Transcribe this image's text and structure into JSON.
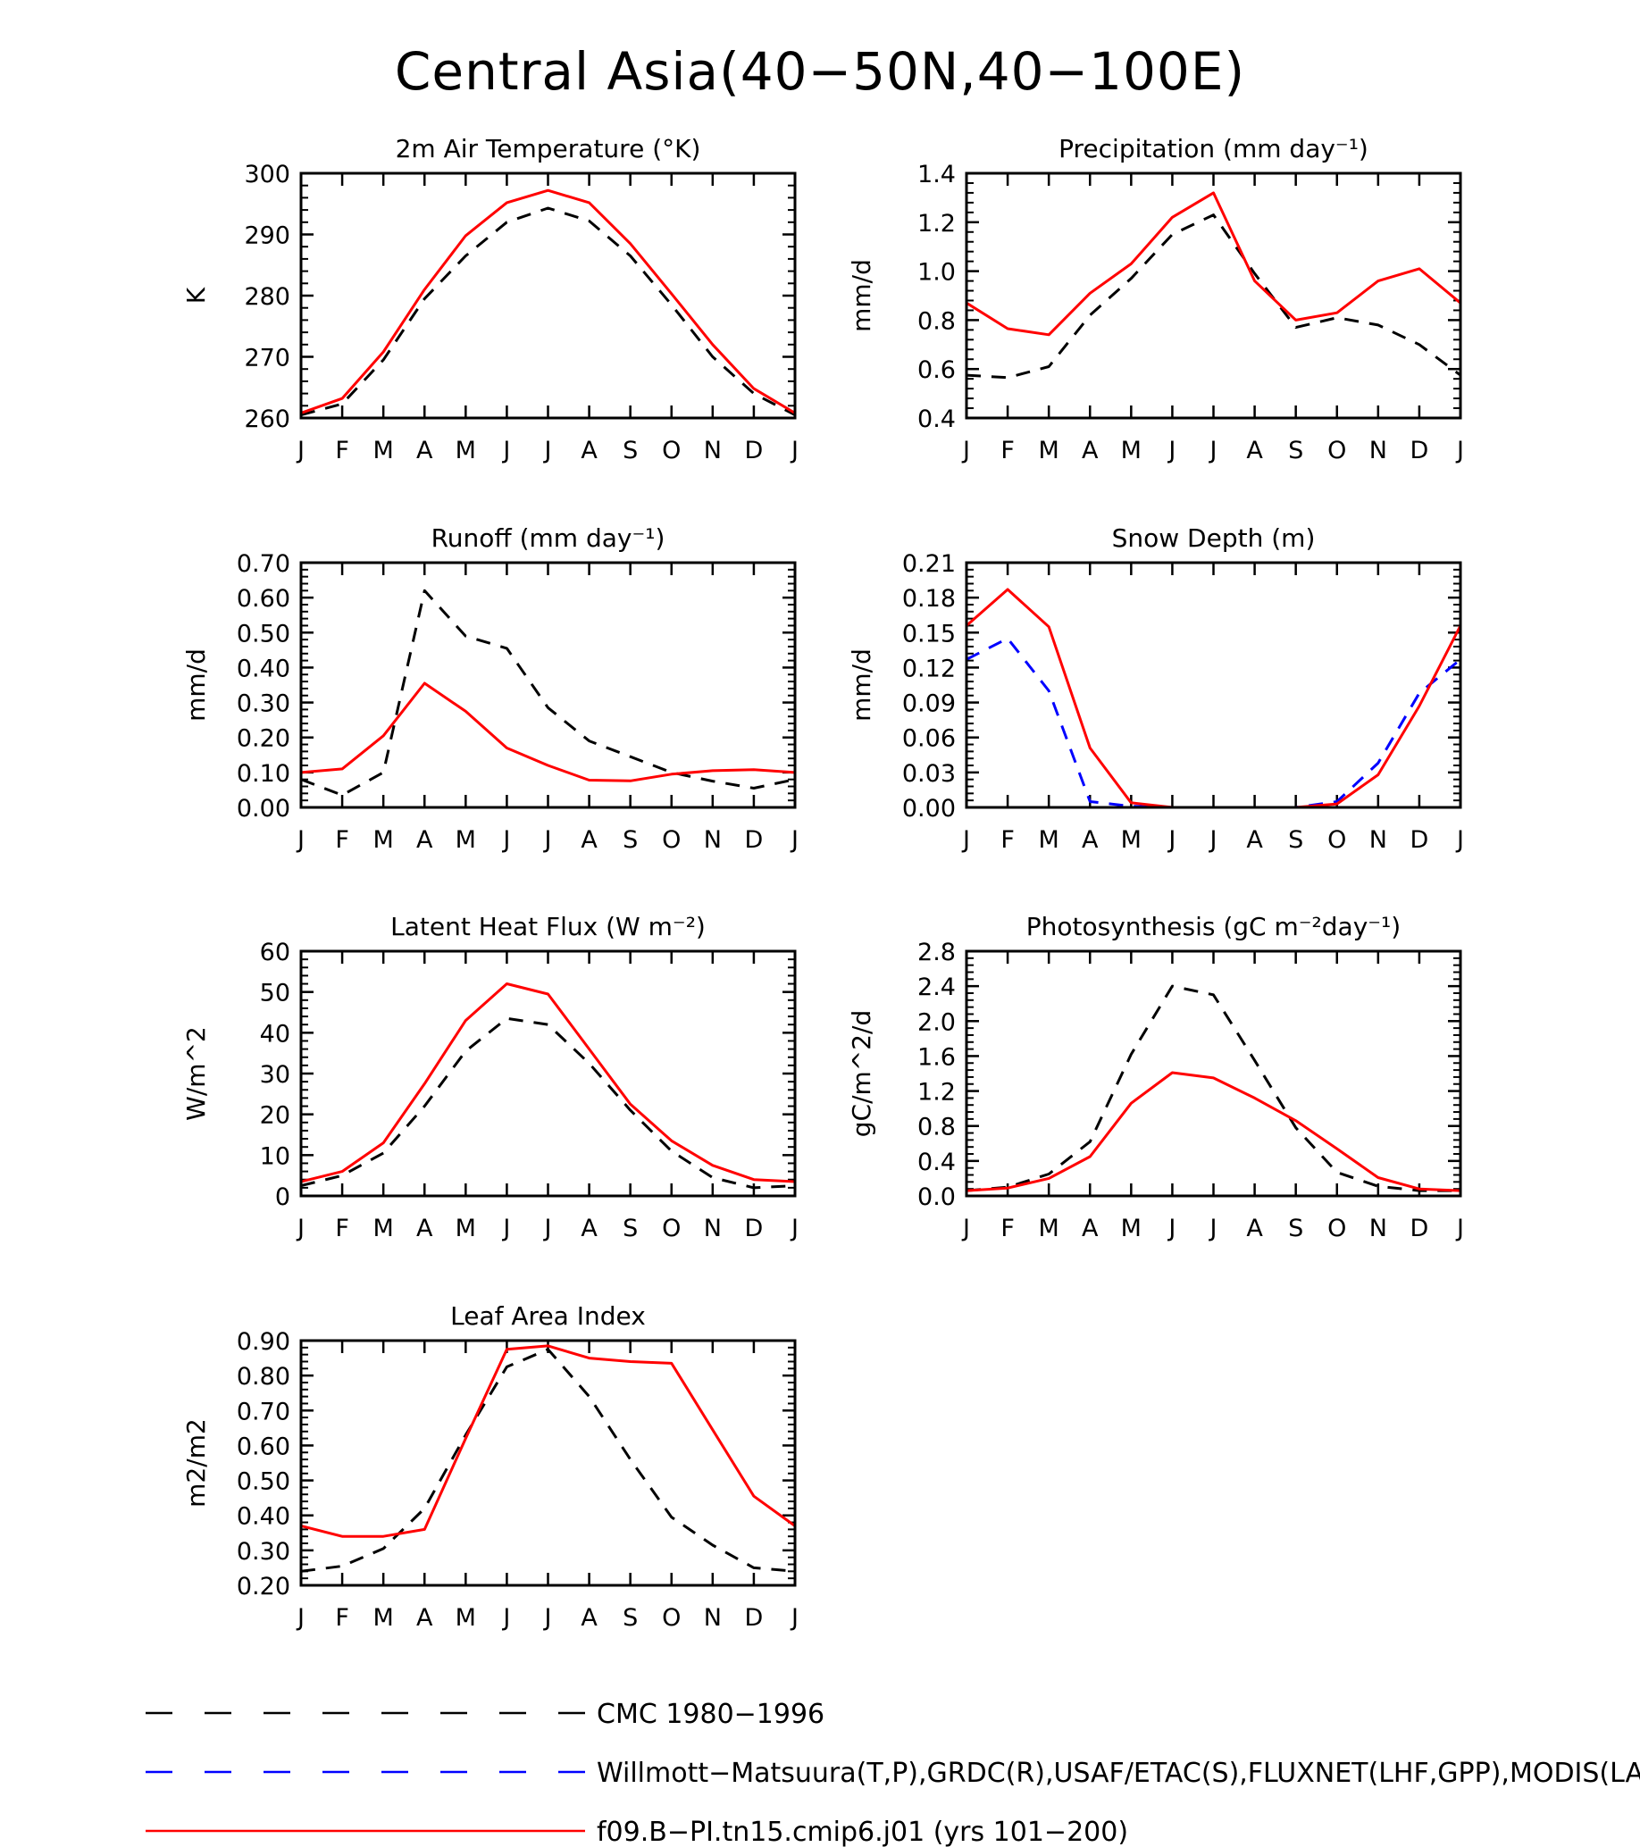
{
  "figure": {
    "title": "Central Asia(40−50N,40−100E)"
  },
  "chart_data": [
    {
      "type": "line",
      "title": "2m Air Temperature (°K)",
      "xlabel": "",
      "ylabel": "K",
      "x": [
        "J",
        "F",
        "M",
        "A",
        "M",
        "J",
        "J",
        "A",
        "S",
        "O",
        "N",
        "D",
        "J"
      ],
      "ylim": [
        260,
        300
      ],
      "yticks": [
        260,
        270,
        280,
        290,
        300
      ],
      "ytick_labels": [
        "260",
        "270",
        "280",
        "290",
        "300"
      ],
      "series": [
        {
          "name": "CMC 1980−1996",
          "color": "#000000",
          "dash": "dashed",
          "values": [
            260.5,
            262.3,
            269.5,
            279.5,
            286.5,
            292.0,
            294.3,
            292.2,
            286.5,
            278.5,
            270.0,
            264.0,
            260.5
          ]
        },
        {
          "name": "f09.B−PI.tn15.cmip6.j01 (yrs 101−200)",
          "color": "#ff0000",
          "dash": "solid",
          "values": [
            260.8,
            263.2,
            270.8,
            281.0,
            289.8,
            295.2,
            297.2,
            295.2,
            288.5,
            280.3,
            272.0,
            264.8,
            260.8
          ]
        }
      ]
    },
    {
      "type": "line",
      "title": "Precipitation (mm day⁻¹)",
      "xlabel": "",
      "ylabel": "mm/d",
      "x": [
        "J",
        "F",
        "M",
        "A",
        "M",
        "J",
        "J",
        "A",
        "S",
        "O",
        "N",
        "D",
        "J"
      ],
      "ylim": [
        0.4,
        1.4
      ],
      "yticks": [
        0.4,
        0.6,
        0.8,
        1.0,
        1.2,
        1.4
      ],
      "ytick_labels": [
        "0.4",
        "0.6",
        "0.8",
        "1.0",
        "1.2",
        "1.4"
      ],
      "series": [
        {
          "name": "CMC 1980−1996",
          "color": "#000000",
          "dash": "dashed",
          "values": [
            0.575,
            0.565,
            0.61,
            0.82,
            0.97,
            1.15,
            1.23,
            0.99,
            0.77,
            0.81,
            0.78,
            0.7,
            0.575
          ]
        },
        {
          "name": "f09.B−PI.tn15.cmip6.j01 (yrs 101−200)",
          "color": "#ff0000",
          "dash": "solid",
          "values": [
            0.87,
            0.765,
            0.74,
            0.91,
            1.03,
            1.22,
            1.32,
            0.96,
            0.8,
            0.83,
            0.96,
            1.01,
            0.87
          ]
        }
      ]
    },
    {
      "type": "line",
      "title": "Runoff (mm day⁻¹)",
      "xlabel": "",
      "ylabel": "mm/d",
      "x": [
        "J",
        "F",
        "M",
        "A",
        "M",
        "J",
        "J",
        "A",
        "S",
        "O",
        "N",
        "D",
        "J"
      ],
      "ylim": [
        0.0,
        0.7
      ],
      "yticks": [
        0.0,
        0.1,
        0.2,
        0.3,
        0.4,
        0.5,
        0.6,
        0.7
      ],
      "ytick_labels": [
        "0.00",
        "0.10",
        "0.20",
        "0.30",
        "0.40",
        "0.50",
        "0.60",
        "0.70"
      ],
      "series": [
        {
          "name": "CMC 1980−1996",
          "color": "#000000",
          "dash": "dashed",
          "values": [
            0.08,
            0.035,
            0.1,
            0.62,
            0.49,
            0.455,
            0.285,
            0.19,
            0.145,
            0.1,
            0.075,
            0.055,
            0.08
          ]
        },
        {
          "name": "f09.B−PI.tn15.cmip6.j01 (yrs 101−200)",
          "color": "#ff0000",
          "dash": "solid",
          "values": [
            0.1,
            0.11,
            0.205,
            0.355,
            0.275,
            0.17,
            0.12,
            0.078,
            0.076,
            0.095,
            0.105,
            0.108,
            0.1
          ]
        }
      ]
    },
    {
      "type": "line",
      "title": "Snow Depth (m)",
      "xlabel": "",
      "ylabel": "mm/d",
      "x": [
        "J",
        "F",
        "M",
        "A",
        "M",
        "J",
        "J",
        "A",
        "S",
        "O",
        "N",
        "D",
        "J"
      ],
      "ylim": [
        0.0,
        0.21
      ],
      "yticks": [
        0.0,
        0.03,
        0.06,
        0.09,
        0.12,
        0.15,
        0.18,
        0.21
      ],
      "ytick_labels": [
        "0.00",
        "0.03",
        "0.06",
        "0.09",
        "0.12",
        "0.15",
        "0.18",
        "0.21"
      ],
      "series": [
        {
          "name": "CMC 1980−1996",
          "color": "#000000",
          "dash": "dashed",
          "values": [
            0.0,
            0.0,
            0.0,
            0.0,
            0.0,
            0.0,
            0.0,
            0.0,
            0.0,
            0.0,
            0.0,
            0.0,
            0.0
          ]
        },
        {
          "name": "Willmott−Matsuura(T,P),GRDC(R),USAF/ETAC(S),FLUXNET(LHF,GPP),MODIS(LAI)",
          "color": "#0000ff",
          "dash": "dashed",
          "values": [
            0.127,
            0.145,
            0.1,
            0.005,
            0.001,
            0.0,
            0.0,
            0.0,
            0.0,
            0.005,
            0.038,
            0.098,
            0.127
          ]
        },
        {
          "name": "f09.B−PI.tn15.cmip6.j01 (yrs 101−200)",
          "color": "#ff0000",
          "dash": "solid",
          "values": [
            0.156,
            0.187,
            0.155,
            0.051,
            0.004,
            0.0,
            0.0,
            0.0,
            0.0,
            0.003,
            0.028,
            0.087,
            0.156
          ]
        }
      ]
    },
    {
      "type": "line",
      "title": "Latent Heat Flux (W m⁻²)",
      "xlabel": "",
      "ylabel": "W/m^2",
      "x": [
        "J",
        "F",
        "M",
        "A",
        "M",
        "J",
        "J",
        "A",
        "S",
        "O",
        "N",
        "D",
        "J"
      ],
      "ylim": [
        0,
        60
      ],
      "yticks": [
        0,
        10,
        20,
        30,
        40,
        50,
        60
      ],
      "ytick_labels": [
        "0",
        "10",
        "20",
        "30",
        "40",
        "50",
        "60"
      ],
      "series": [
        {
          "name": "CMC 1980−1996",
          "color": "#000000",
          "dash": "dashed",
          "values": [
            2.5,
            5.0,
            10.5,
            22.0,
            35.5,
            43.5,
            42.0,
            32.5,
            21.0,
            11.0,
            4.5,
            2.0,
            2.5
          ]
        },
        {
          "name": "f09.B−PI.tn15.cmip6.j01 (yrs 101−200)",
          "color": "#ff0000",
          "dash": "solid",
          "values": [
            3.5,
            6.0,
            13.0,
            27.5,
            43.0,
            52.0,
            49.5,
            36.0,
            22.5,
            13.5,
            7.5,
            4.0,
            3.5
          ]
        }
      ]
    },
    {
      "type": "line",
      "title": "Photosynthesis (gC m⁻²day⁻¹)",
      "xlabel": "",
      "ylabel": "gC/m^2/d",
      "x": [
        "J",
        "F",
        "M",
        "A",
        "M",
        "J",
        "J",
        "A",
        "S",
        "O",
        "N",
        "D",
        "J"
      ],
      "ylim": [
        0.0,
        2.8
      ],
      "yticks": [
        0.0,
        0.4,
        0.8,
        1.2,
        1.6,
        2.0,
        2.4,
        2.8
      ],
      "ytick_labels": [
        "0.0",
        "0.4",
        "0.8",
        "1.2",
        "1.6",
        "2.0",
        "2.4",
        "2.8"
      ],
      "series": [
        {
          "name": "CMC 1980−1996",
          "color": "#000000",
          "dash": "dashed",
          "values": [
            0.06,
            0.1,
            0.25,
            0.62,
            1.62,
            2.4,
            2.3,
            1.55,
            0.78,
            0.27,
            0.11,
            0.06,
            0.06
          ]
        },
        {
          "name": "f09.B−PI.tn15.cmip6.j01 (yrs 101−200)",
          "color": "#ff0000",
          "dash": "solid",
          "values": [
            0.06,
            0.09,
            0.2,
            0.45,
            1.06,
            1.41,
            1.35,
            1.12,
            0.86,
            0.54,
            0.21,
            0.08,
            0.06
          ]
        }
      ]
    },
    {
      "type": "line",
      "title": "Leaf Area Index",
      "xlabel": "",
      "ylabel": "m2/m2",
      "x": [
        "J",
        "F",
        "M",
        "A",
        "M",
        "J",
        "J",
        "A",
        "S",
        "O",
        "N",
        "D",
        "J"
      ],
      "ylim": [
        0.2,
        0.9
      ],
      "yticks": [
        0.2,
        0.3,
        0.4,
        0.5,
        0.6,
        0.7,
        0.8,
        0.9
      ],
      "ytick_labels": [
        "0.20",
        "0.30",
        "0.40",
        "0.50",
        "0.60",
        "0.70",
        "0.80",
        "0.90"
      ],
      "series": [
        {
          "name": "CMC 1980−1996",
          "color": "#000000",
          "dash": "dashed",
          "values": [
            0.24,
            0.255,
            0.305,
            0.42,
            0.63,
            0.825,
            0.875,
            0.74,
            0.56,
            0.395,
            0.315,
            0.25,
            0.24
          ]
        },
        {
          "name": "f09.B−PI.tn15.cmip6.j01 (yrs 101−200)",
          "color": "#ff0000",
          "dash": "solid",
          "values": [
            0.37,
            0.34,
            0.34,
            0.36,
            0.62,
            0.875,
            0.885,
            0.85,
            0.84,
            0.835,
            0.645,
            0.455,
            0.37
          ]
        }
      ]
    }
  ],
  "legend": {
    "entries": [
      {
        "label": "CMC 1980−1996",
        "color": "#000000",
        "dash": "dashed"
      },
      {
        "label": "Willmott−Matsuura(T,P),GRDC(R),USAF/ETAC(S),FLUXNET(LHF,GPP),MODIS(LAI)",
        "color": "#0000ff",
        "dash": "dashed"
      },
      {
        "label": "f09.B−PI.tn15.cmip6.j01 (yrs 101−200)",
        "color": "#ff0000",
        "dash": "solid"
      }
    ]
  }
}
